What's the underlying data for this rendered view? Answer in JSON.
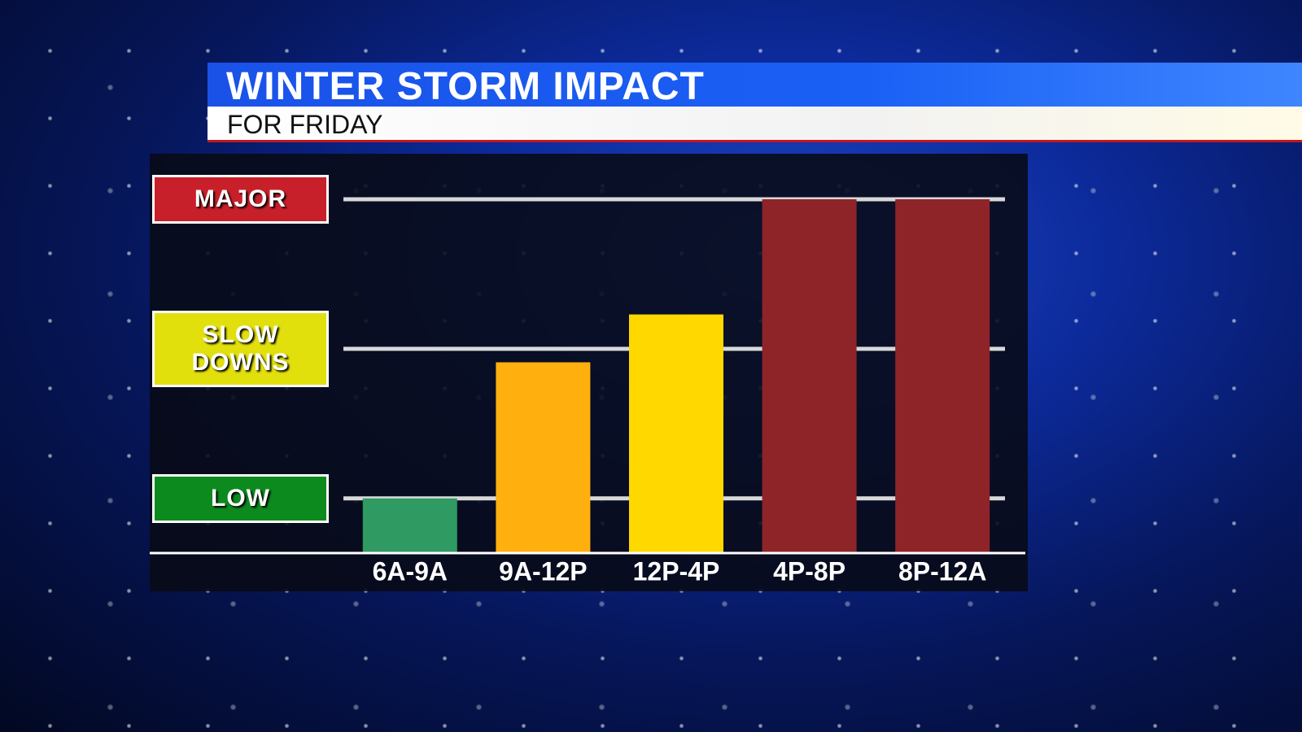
{
  "chart_data": {
    "type": "bar",
    "title": "WINTER STORM IMPACT",
    "subtitle": "FOR FRIDAY",
    "categories": [
      "6A-9A",
      "9A-12P",
      "12P-4P",
      "4P-8P",
      "8P-12A"
    ],
    "values": [
      1.0,
      1.91,
      2.23,
      3.0,
      3.0
    ],
    "colors": [
      "#2f9a62",
      "#ffb00f",
      "#ffd800",
      "#8e2428",
      "#8e2428"
    ],
    "ylim": [
      0.64,
      3
    ],
    "yticks": [
      {
        "value": 1,
        "label": "LOW"
      },
      {
        "value": 2,
        "label": "SLOW DOWNS"
      },
      {
        "value": 3,
        "label": "MAJOR"
      }
    ],
    "ytick_colors": [
      "#0c8a1e",
      "#e2e00c",
      "#c8202a"
    ],
    "grid": true
  }
}
